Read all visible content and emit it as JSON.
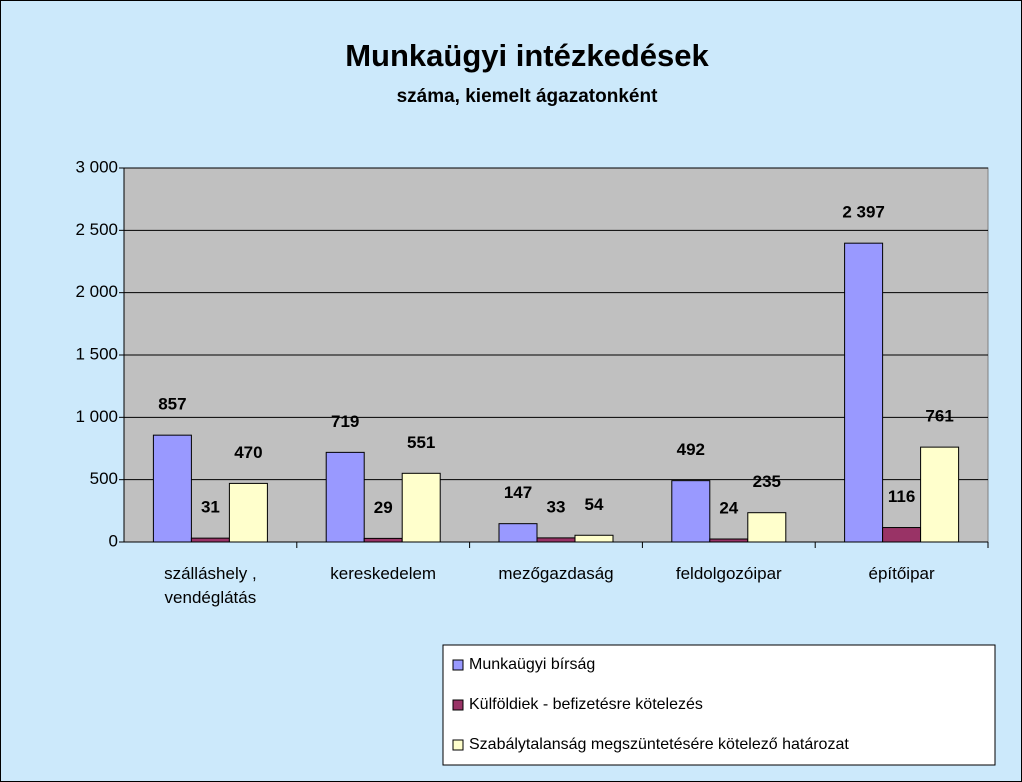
{
  "chart_data": {
    "type": "bar",
    "title": "Munkaügyi intézkedések",
    "subtitle": "száma, kiemelt ágazatonként",
    "categories": [
      "szálláshely , vendéglátás",
      "kereskedelem",
      "mezőgazdaság",
      "feldolgozóipar",
      "építőipar"
    ],
    "series": [
      {
        "name": "Munkaügyi bírság",
        "color": "#9999ff",
        "values": [
          857,
          719,
          147,
          492,
          2397
        ],
        "value_labels": [
          "857",
          "719",
          "147",
          "492",
          "2 397"
        ]
      },
      {
        "name": "Külföldiek - befizetésre kötelezés",
        "color": "#993366",
        "values": [
          31,
          29,
          33,
          24,
          116
        ]
      },
      {
        "name": "Szabálytalanság megszüntetésére kötelező határozat",
        "color": "#ffffcc",
        "values": [
          470,
          551,
          54,
          235,
          761
        ]
      }
    ],
    "ylim": [
      0,
      3000
    ],
    "yticks": [
      0,
      500,
      {
        "value": 1000,
        "label": "1 000"
      },
      {
        "value": 1500,
        "label": "1 500"
      },
      {
        "value": 2000,
        "label": "2 000"
      },
      {
        "value": 2500,
        "label": "2 500"
      },
      {
        "value": 3000,
        "label": "3 000"
      }
    ],
    "grid": true,
    "legend": "bottom-right"
  }
}
